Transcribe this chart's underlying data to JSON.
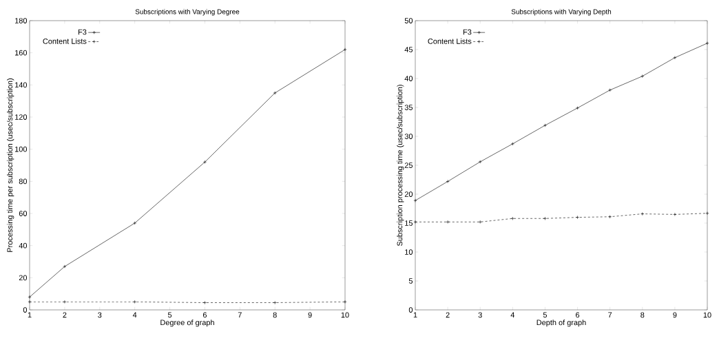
{
  "chart_data": [
    {
      "type": "line",
      "title": "Subscriptions with Varying Degree",
      "xlabel": "Degree of graph",
      "ylabel": "Processing time per subscription (usec/subscription)",
      "xlim": [
        1,
        10
      ],
      "ylim": [
        0,
        180
      ],
      "xticks": [
        1,
        2,
        3,
        4,
        5,
        6,
        7,
        8,
        9,
        10
      ],
      "yticks": [
        0,
        20,
        40,
        60,
        80,
        100,
        120,
        140,
        160,
        180
      ],
      "legend": "top left",
      "grid": false,
      "series": [
        {
          "name": "F3",
          "color": "#000000",
          "marker": "cross",
          "line_style": "solid",
          "x": [
            1,
            2,
            4,
            6,
            8,
            10
          ],
          "values": [
            8,
            27,
            54,
            92,
            135,
            162
          ]
        },
        {
          "name": "Content Lists",
          "color": "#000000",
          "marker": "cross",
          "line_style": "dashed",
          "x": [
            1,
            2,
            4,
            6,
            8,
            10
          ],
          "values": [
            5,
            5,
            5,
            4.5,
            4.5,
            5
          ]
        }
      ]
    },
    {
      "type": "line",
      "title": "Subscriptions with Varying Depth",
      "xlabel": "Depth of graph",
      "ylabel": "Subscription processing time (usec/subscription)",
      "xlim": [
        1,
        10
      ],
      "ylim": [
        0,
        50
      ],
      "xticks": [
        1,
        2,
        3,
        4,
        5,
        6,
        7,
        8,
        9,
        10
      ],
      "yticks": [
        0,
        5,
        10,
        15,
        20,
        25,
        30,
        35,
        40,
        45,
        50
      ],
      "legend": "top left",
      "grid": false,
      "series": [
        {
          "name": "F3",
          "color": "#000000",
          "marker": "cross",
          "line_style": "solid",
          "x": [
            1,
            2,
            3,
            4,
            5,
            6,
            7,
            8,
            9,
            10
          ],
          "values": [
            18.9,
            22.2,
            25.6,
            28.7,
            31.9,
            34.9,
            38,
            40.4,
            43.6,
            46.1
          ]
        },
        {
          "name": "Content Lists",
          "color": "#000000",
          "marker": "cross",
          "line_style": "dashed",
          "x": [
            1,
            2,
            3,
            4,
            5,
            6,
            7,
            8,
            9,
            10
          ],
          "values": [
            15.2,
            15.2,
            15.2,
            15.8,
            15.8,
            16,
            16.1,
            16.6,
            16.5,
            16.7
          ]
        }
      ]
    }
  ]
}
